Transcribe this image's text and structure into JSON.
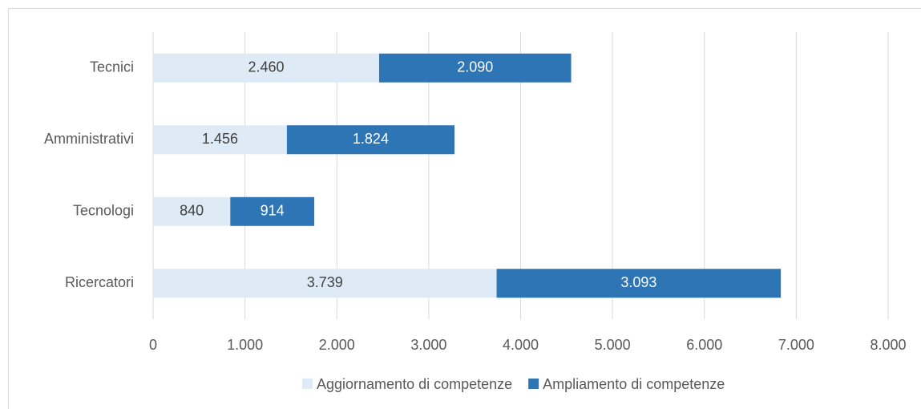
{
  "chart_data": {
    "type": "stacked_bar_horizontal",
    "categories": [
      "Tecnici",
      "Amministrativi",
      "Tecnologi",
      "Ricercatori"
    ],
    "series": [
      {
        "name": "Aggiornamento di competenze",
        "color": "#deebf7",
        "values": [
          2460,
          1456,
          840,
          3739
        ],
        "value_labels": [
          "2.460",
          "1.456",
          "840",
          "3.739"
        ]
      },
      {
        "name": "Ampliamento di competenze",
        "color": "#2e75b6",
        "values": [
          2090,
          1824,
          914,
          3093
        ],
        "value_labels": [
          "2.090",
          "1.824",
          "914",
          "3.093"
        ]
      }
    ],
    "xlim": [
      0,
      8000
    ],
    "xticks": [
      0,
      {
        "value": 1000,
        "label": "1.000"
      },
      {
        "value": 2000,
        "label": "2.000"
      },
      {
        "value": 3000,
        "label": "3.000"
      },
      {
        "value": 4000,
        "label": "4.000"
      },
      {
        "value": 5000,
        "label": "5.000"
      },
      {
        "value": 6000,
        "label": "6.000"
      },
      {
        "value": 7000,
        "label": "7.000"
      },
      {
        "value": 8000,
        "label": "8.000"
      }
    ],
    "grid": true,
    "legend": "bottom"
  }
}
